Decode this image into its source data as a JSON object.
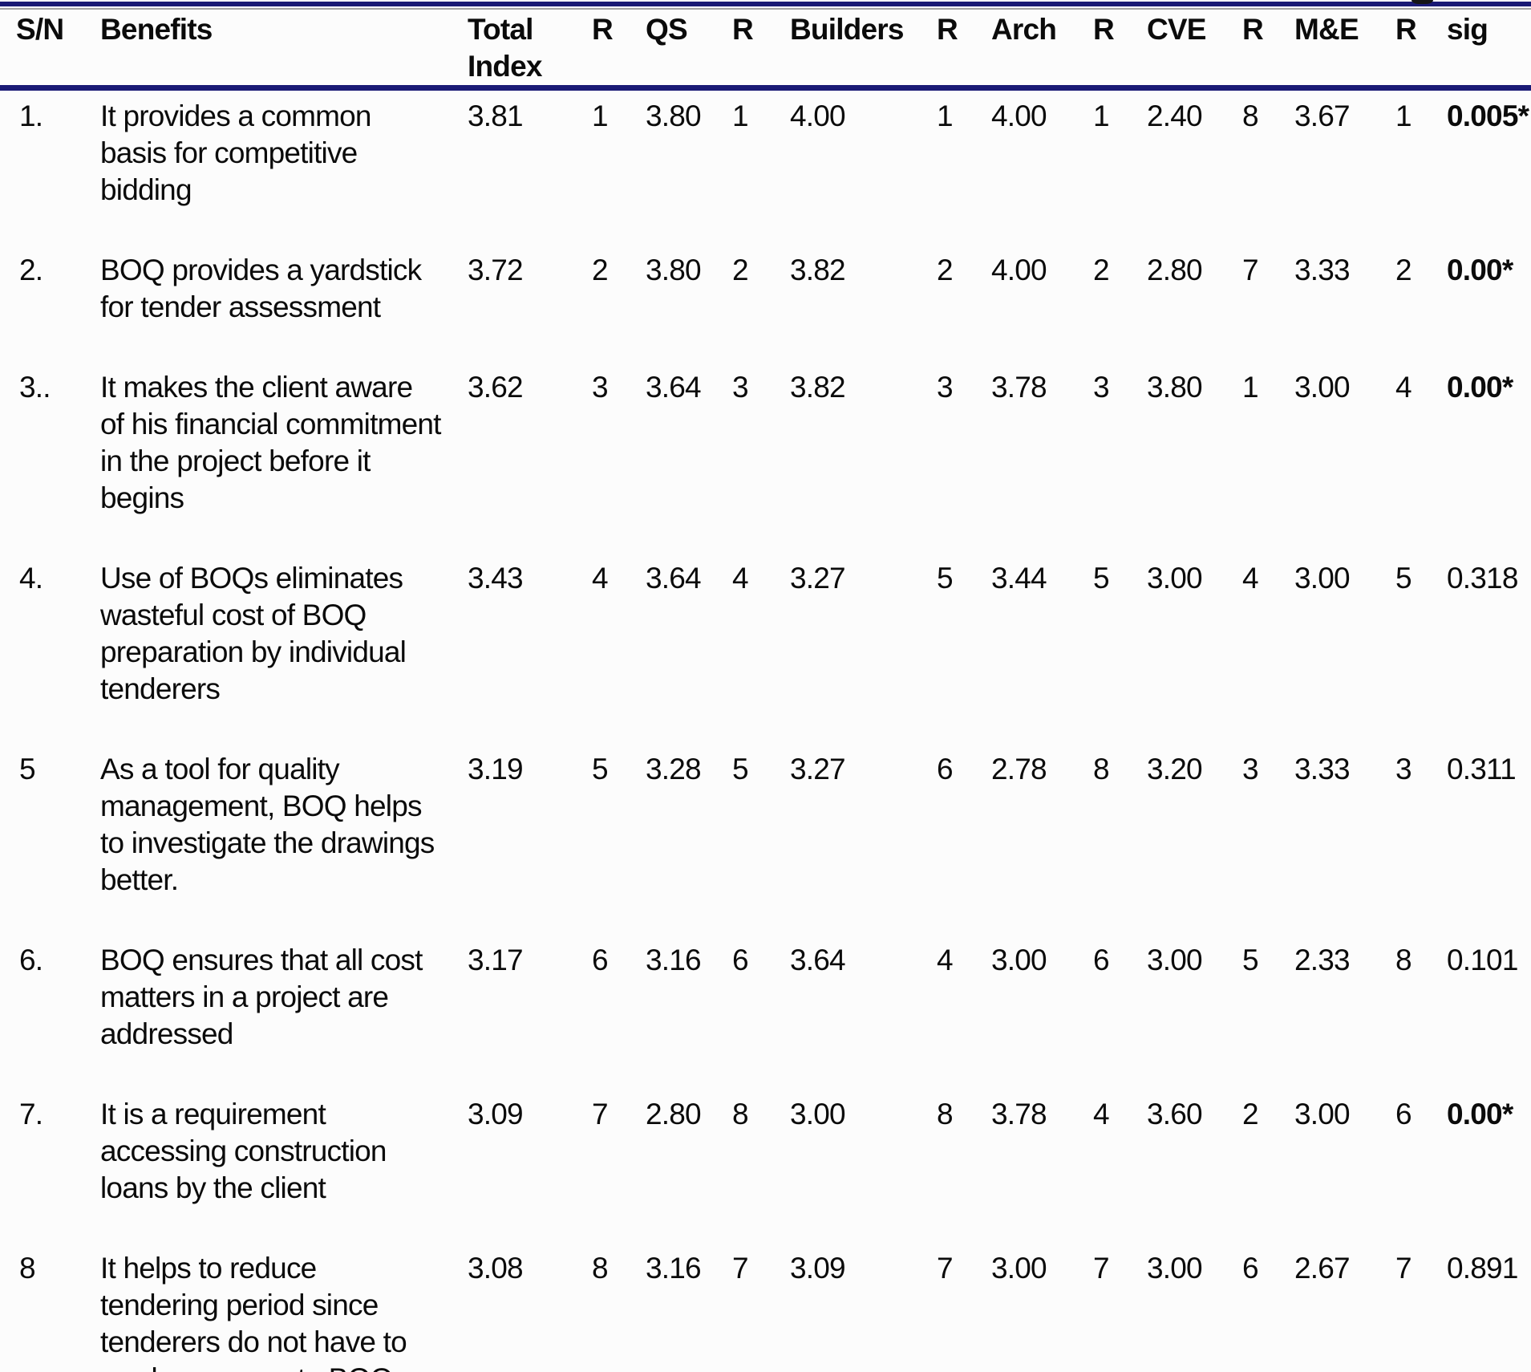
{
  "colors": {
    "rule": "#1a1a75",
    "text": "#0b0b0b",
    "background": "#fcfcfc"
  },
  "table": {
    "columns": [
      {
        "key": "sn",
        "label": "S/N"
      },
      {
        "key": "benefit",
        "label": "Benefits"
      },
      {
        "key": "total",
        "label": "Total\nIndex"
      },
      {
        "key": "r1",
        "label": "R"
      },
      {
        "key": "qs",
        "label": "QS"
      },
      {
        "key": "r2",
        "label": "R"
      },
      {
        "key": "builders",
        "label": "Builders"
      },
      {
        "key": "r3",
        "label": "R"
      },
      {
        "key": "arch",
        "label": "Arch"
      },
      {
        "key": "r4",
        "label": "R"
      },
      {
        "key": "cve",
        "label": "CVE"
      },
      {
        "key": "r5",
        "label": "R"
      },
      {
        "key": "me",
        "label": "M&E"
      },
      {
        "key": "r6",
        "label": "R"
      },
      {
        "key": "sig",
        "label": "sig"
      }
    ],
    "rows": [
      {
        "sn": "1.",
        "benefit": "It provides a common\nbasis for competitive\nbidding",
        "total": "3.81",
        "r1": "1",
        "qs": "3.80",
        "r2": "1",
        "builders": "4.00",
        "r3": "1",
        "arch": "4.00",
        "r4": "1",
        "cve": "2.40",
        "r5": "8",
        "me": "3.67",
        "r6": "1",
        "sig": "0.005*",
        "sig_bold": true
      },
      {
        "sn": "2.",
        "benefit": "BOQ provides a yardstick\nfor tender assessment",
        "total": "3.72",
        "r1": "2",
        "qs": "3.80",
        "r2": "2",
        "builders": "3.82",
        "r3": "2",
        "arch": "4.00",
        "r4": "2",
        "cve": "2.80",
        "r5": "7",
        "me": "3.33",
        "r6": "2",
        "sig": "0.00*",
        "sig_bold": true
      },
      {
        "sn": "3..",
        "benefit": "It makes the client aware\nof his financial commitment\nin the project before it\nbegins",
        "total": "3.62",
        "r1": "3",
        "qs": "3.64",
        "r2": "3",
        "builders": "3.82",
        "r3": "3",
        "arch": "3.78",
        "r4": "3",
        "cve": "3.80",
        "r5": "1",
        "me": "3.00",
        "r6": "4",
        "sig": "0.00*",
        "sig_bold": true
      },
      {
        "sn": "4.",
        "benefit": "Use of BOQs eliminates\nwasteful cost of BOQ\npreparation by individual\ntenderers",
        "total": "3.43",
        "r1": "4",
        "qs": "3.64",
        "r2": "4",
        "builders": "3.27",
        "r3": "5",
        "arch": "3.44",
        "r4": "5",
        "cve": "3.00",
        "r5": "4",
        "me": "3.00",
        "r6": "5",
        "sig": "0.318",
        "sig_bold": false
      },
      {
        "sn": "5",
        "benefit": "As a tool for quality\nmanagement, BOQ helps\nto investigate the drawings\nbetter.",
        "total": "3.19",
        "r1": "5",
        "qs": "3.28",
        "r2": "5",
        "builders": "3.27",
        "r3": "6",
        "arch": "2.78",
        "r4": "8",
        "cve": "3.20",
        "r5": "3",
        "me": "3.33",
        "r6": "3",
        "sig": "0.311",
        "sig_bold": false
      },
      {
        "sn": "6.",
        "benefit": "BOQ ensures that all cost\nmatters in a project are\naddressed",
        "total": "3.17",
        "r1": "6",
        "qs": "3.16",
        "r2": "6",
        "builders": "3.64",
        "r3": "4",
        "arch": "3.00",
        "r4": "6",
        "cve": "3.00",
        "r5": "5",
        "me": "2.33",
        "r6": "8",
        "sig": "0.101",
        "sig_bold": false
      },
      {
        "sn": "7.",
        "benefit": "It is a requirement\naccessing construction\nloans by the client",
        "total": "3.09",
        "r1": "7",
        "qs": "2.80",
        "r2": "8",
        "builders": "3.00",
        "r3": "8",
        "arch": "3.78",
        "r4": "4",
        "cve": "3.60",
        "r5": "2",
        "me": "3.00",
        "r6": "6",
        "sig": "0.00*",
        "sig_bold": true
      },
      {
        "sn": "8",
        "benefit": "It helps to reduce\ntendering period since\ntenderers do not have to\nproduce separate BOQs",
        "total": "3.08",
        "r1": "8",
        "qs": "3.16",
        "r2": "7",
        "builders": "3.09",
        "r3": "7",
        "arch": "3.00",
        "r4": "7",
        "cve": "3.00",
        "r5": "6",
        "me": "2.67",
        "r6": "7",
        "sig": "0.891",
        "sig_bold": false
      }
    ]
  }
}
